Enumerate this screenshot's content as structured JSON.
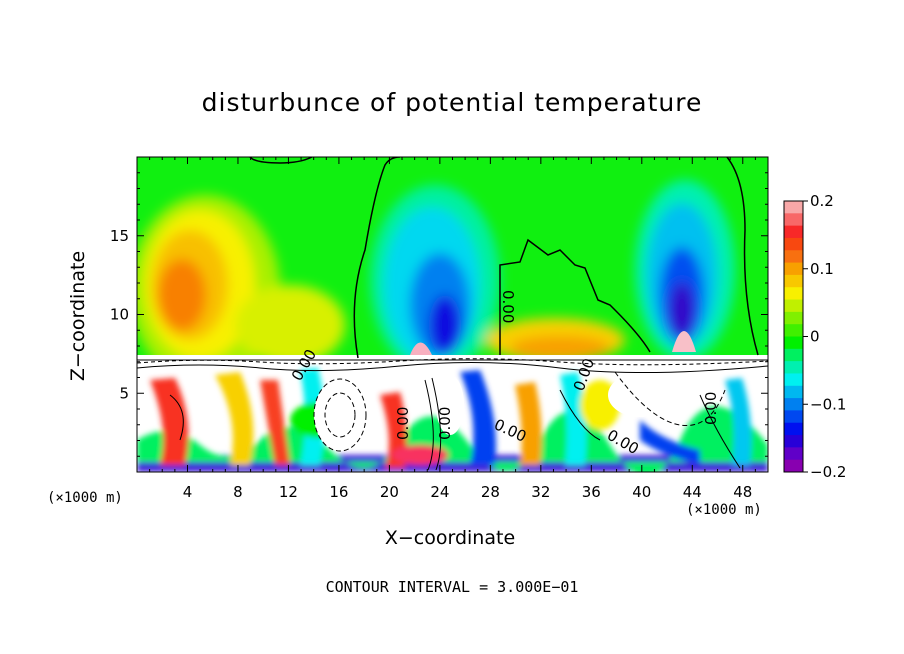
{
  "chart_data": {
    "type": "heatmap",
    "title": "disturbunce of potential temperature",
    "xlabel": "X−coordinate",
    "ylabel": "Z−coordinate",
    "x_unit": "(×1000 m)",
    "footer": "CONTOUR INTERVAL = 3.000E−01",
    "xlim": [
      0,
      50
    ],
    "ylim": [
      0,
      20
    ],
    "x_ticks": [
      4,
      8,
      12,
      16,
      20,
      24,
      28,
      32,
      36,
      40,
      44,
      48
    ],
    "y_ticks": [
      5,
      10,
      15
    ],
    "contour_labels": [
      "0.00",
      "0.00",
      "0.00",
      "0.00",
      "0.00",
      "0.00",
      "0.00",
      "0.00"
    ],
    "colorbar": {
      "min": -0.2,
      "max": 0.2,
      "tick_labels": [
        "0.2",
        "0.1",
        "0",
        "−0.1",
        "−0.2"
      ],
      "colors": [
        "#f8a8a8",
        "#f86868",
        "#f82828",
        "#f84810",
        "#f87010",
        "#f8a000",
        "#f8c800",
        "#f8f000",
        "#c0f000",
        "#80f000",
        "#40f000",
        "#00f000",
        "#00f060",
        "#00f0b0",
        "#00f0f0",
        "#00b8f0",
        "#0080f0",
        "#0048f0",
        "#0010f0",
        "#2800d8",
        "#6000c8",
        "#8800b0"
      ]
    },
    "stable_layer_top": 7.3
  }
}
